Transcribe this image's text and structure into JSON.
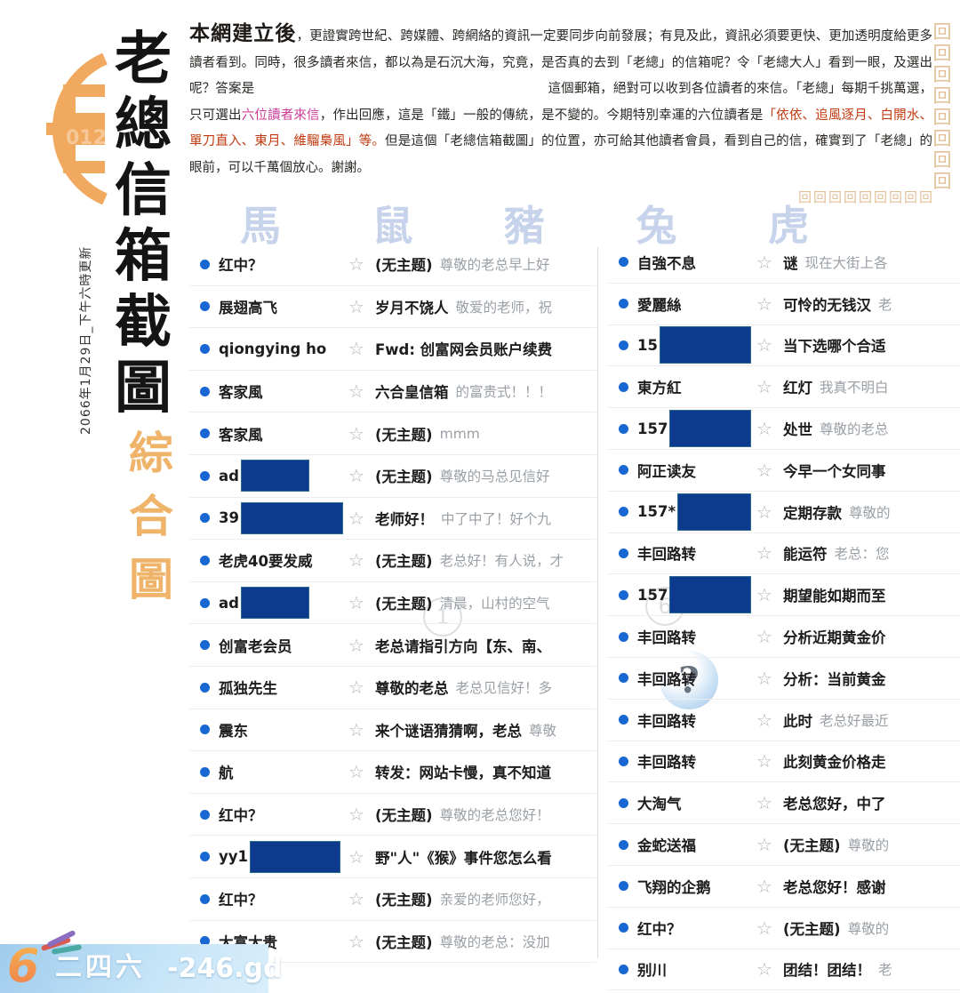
{
  "brand": {
    "title_vertical": [
      "老",
      "總",
      "信",
      "箱",
      "截",
      "圖"
    ],
    "subtitle_vertical": [
      "綜",
      "合",
      "圖"
    ],
    "date_note": "2066年1月29日_下午六時更新",
    "seal_number": "012"
  },
  "intro": {
    "lead": "本網建立後",
    "segments": [
      {
        "text": "，更證實跨世紀、跨媒體、跨網絡的資訊一定要同步向前發展；有見及此，資訊必須要更快、更加透明度給更多讀者看到。同時，很多讀者來信，都以為是石沉大海，究竟，是否真的去到「老總」的信箱呢？令「老總大人」看到一眼，及選出呢？答案是",
        "style": "dark"
      },
      {
        "text": "",
        "style": "gap"
      },
      {
        "text": "這個郵箱，絕對可以收到各位讀者的來信。「老總」每期千挑萬選，只可選出",
        "style": "dark"
      },
      {
        "text": "六位讀者來信",
        "style": "magenta"
      },
      {
        "text": "，作出回應，這是「鐵」一般的傳統，是不變的。今期特別幸運的六位讀者是",
        "style": "dark"
      },
      {
        "text": "「依依、追風逐月、白開水、單刀直入、東月、維騮梟風」等。",
        "style": "red"
      },
      {
        "text": "但是這個「老總信箱截圖」的位置，亦可給其他讀者會員，看到自己的信，確實到了「老總」的眼前，可以千萬個放心。謝謝。",
        "style": "dark"
      }
    ]
  },
  "watermarks": {
    "zodiac": [
      "馬",
      "鼠",
      "豬",
      "兔",
      "虎"
    ],
    "circle_number_1": "1",
    "circle_number_6": "6",
    "question_mark": "?"
  },
  "mailbox": {
    "star_icon": "☆",
    "left_rows": [
      {
        "name": "红中？",
        "subject": "(无主题)",
        "preview": "尊敬的老总早上好"
      },
      {
        "name": "展翅高飞",
        "subject": "岁月不饶人",
        "preview": "敬爱的老师，祝"
      },
      {
        "name": "qiongying ho",
        "subject": "Fwd: 创富网会员账户续费",
        "preview": ""
      },
      {
        "name": "客家風",
        "subject": "六合皇信箱",
        "preview": "的富贵式！！！"
      },
      {
        "name": "客家風",
        "subject": "(无主题)",
        "preview": "mmm"
      },
      {
        "name": "ad",
        "redact_width": 75,
        "subject": "(无主题)",
        "preview": "尊敬的马总见信好"
      },
      {
        "name": "39",
        "redact_width": 118,
        "subject": "老师好！",
        "preview": "中了中了！好个九"
      },
      {
        "name": "老虎40要发威",
        "subject": "(无主题)",
        "preview": "老总好！有人说，才"
      },
      {
        "name": "ad",
        "redact_width": 75,
        "subject": "(无主题)",
        "preview": "清晨，山村的空气"
      },
      {
        "name": "创富老会员",
        "subject": "老总请指引方向【东、南、",
        "preview": ""
      },
      {
        "name": "孤独先生",
        "subject": "尊敬的老总",
        "preview": "老总见信好！多"
      },
      {
        "name": "震东",
        "subject": "来个谜语猜猜啊，老总",
        "preview": "尊敬"
      },
      {
        "name": "航",
        "subject": "转发：网站卡慢，真不知道",
        "preview": ""
      },
      {
        "name": "红中？",
        "subject": "(无主题)",
        "preview": "尊敬的老总您好！"
      },
      {
        "name": "yy1",
        "redact_width": 100,
        "subject": "野\"人\"《猴》事件您怎么看",
        "preview": ""
      },
      {
        "name": "红中？",
        "subject": "(无主题)",
        "preview": "亲爱的老师您好，"
      },
      {
        "name": "大富大贵",
        "subject": "(无主题)",
        "preview": "尊敬的老总：没加"
      }
    ],
    "right_rows": [
      {
        "name": "自強不息",
        "subject": "谜",
        "preview": "现在大街上各"
      },
      {
        "name": "愛麗絲",
        "subject": "可怜的无钱汉",
        "preview": "老"
      },
      {
        "name": "15",
        "redact_width": 112,
        "subject": "当下选哪个合适",
        "preview": ""
      },
      {
        "name": "東方紅",
        "subject": "红灯",
        "preview": "我真不明白"
      },
      {
        "name": "157",
        "redact_width": 104,
        "subject": "处世",
        "preview": "尊敬的老总"
      },
      {
        "name": "阿正读友",
        "subject": "今早一个女同事",
        "preview": ""
      },
      {
        "name": "157*",
        "redact_width": 90,
        "subject": "定期存款",
        "preview": "尊敬的"
      },
      {
        "name": "丰回路转",
        "subject": "能运符",
        "preview": "老总：您"
      },
      {
        "name": "157",
        "redact_width": 104,
        "subject": "期望能如期而至",
        "preview": ""
      },
      {
        "name": "丰回路转",
        "subject": "分析近期黄金价",
        "preview": ""
      },
      {
        "name": "丰回路转",
        "subject": "分析：当前黄金",
        "preview": ""
      },
      {
        "name": "丰回路转",
        "subject": "此时",
        "preview": "老总好最近"
      },
      {
        "name": "丰回路转",
        "subject": "此刻黄金价格走",
        "preview": ""
      },
      {
        "name": "大淘气",
        "subject": "老总您好，中了",
        "preview": ""
      },
      {
        "name": "金蛇送福",
        "subject": "(无主题)",
        "preview": "尊敬的"
      },
      {
        "name": "飞翔的企鹅",
        "subject": "老总您好！感谢",
        "preview": ""
      },
      {
        "name": "红中？",
        "subject": "(无主题)",
        "preview": "尊敬的"
      },
      {
        "name": "别川",
        "subject": "团结！团结！",
        "preview": "老"
      }
    ]
  },
  "footer": {
    "logo_digit": "6",
    "brand_cn": "二四六",
    "brand_domain": "-246.gd"
  },
  "colors": {
    "accent_orange": "#eda74f",
    "redaction_navy": "#0c3a8c",
    "unread_blue": "#1967d2",
    "magenta": "#cc3a99",
    "red": "#c23a10",
    "footer_blue": "#a9d2ee"
  }
}
